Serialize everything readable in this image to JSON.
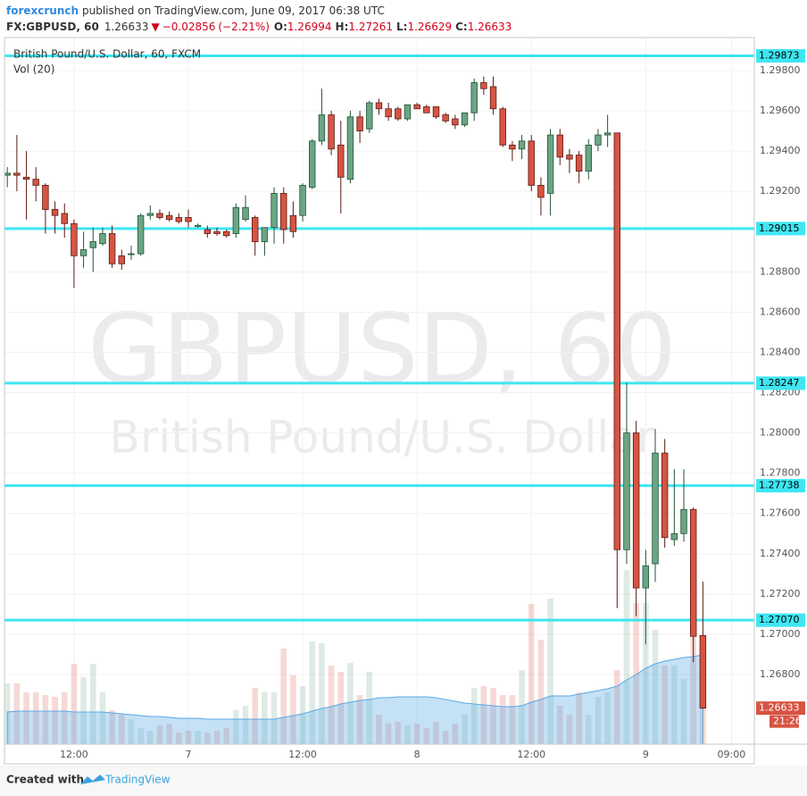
{
  "chart_data": {
    "type": "candlestick",
    "header": {
      "publisher": "forexcrunch",
      "published": "published on TradingView.com, June 09, 2017 06:38 UTC",
      "symbol": "FX:GBPUSD, 60",
      "arrow": "▼",
      "change": "−0.02856",
      "change_pct": "(−2.21%)",
      "ohlc_labels": [
        "O:",
        "H:",
        "L:",
        "C:"
      ]
    },
    "watermark": [
      "GBPUSD, 60",
      "British Pound/U.S. Dollar"
    ],
    "up_color": "#6ba583",
    "down_color": "#d75442",
    "series": [
      {
        "name": "British Pound/U.S. Dollar, 60, FXCM",
        "open": [
          1.2928,
          1.2929,
          1.2927,
          1.2926,
          1.2923,
          1.2911,
          1.2909,
          1.2904,
          1.2888,
          1.2892,
          1.2894,
          1.2899,
          1.2888,
          1.2889,
          1.2889,
          1.2908,
          1.2909,
          1.2908,
          1.2907,
          1.2907,
          1.2903,
          1.2901,
          1.29,
          1.29,
          1.2899,
          1.2906,
          1.2907,
          1.2895,
          1.2902,
          1.2919,
          1.2908,
          1.2908,
          1.2922,
          1.2945,
          1.2958,
          1.2943,
          1.2926,
          1.2957,
          1.2951,
          1.2964,
          1.2961,
          1.2961,
          1.2956,
          1.2963,
          1.2962,
          1.2962,
          1.2958,
          1.2956,
          1.2953,
          1.2959,
          1.2974,
          1.2972,
          1.2961,
          1.2943,
          1.2941,
          1.2945,
          1.2923,
          1.2919,
          1.2948,
          1.2938,
          1.2938,
          1.293,
          1.2943,
          1.2948,
          1.2949,
          1.2742,
          1.28,
          1.2723,
          1.2735,
          1.279,
          1.2747,
          1.275,
          1.2762,
          1.26994
        ],
        "high": [
          1.2932,
          1.2948,
          1.294,
          1.2932,
          1.2924,
          1.2915,
          1.2914,
          1.2906,
          1.29,
          1.2902,
          1.2902,
          1.2903,
          1.2891,
          1.2893,
          1.2909,
          1.2913,
          1.2911,
          1.291,
          1.2909,
          1.2911,
          1.2904,
          1.2903,
          1.2902,
          1.2901,
          1.2914,
          1.2918,
          1.2908,
          1.2902,
          1.2922,
          1.2922,
          1.2915,
          1.2924,
          1.2946,
          1.2971,
          1.296,
          1.2955,
          1.296,
          1.296,
          1.2965,
          1.2966,
          1.2964,
          1.2962,
          1.2963,
          1.2964,
          1.2963,
          1.2962,
          1.2959,
          1.2958,
          1.2959,
          1.2976,
          1.2977,
          1.2977,
          1.2962,
          1.2945,
          1.2948,
          1.2948,
          1.2927,
          1.2951,
          1.2951,
          1.2941,
          1.294,
          1.2946,
          1.2951,
          1.2958,
          1.2949,
          1.2825,
          1.2806,
          1.2742,
          1.2802,
          1.2797,
          1.2782,
          1.2782,
          1.2763,
          1.27261
        ],
        "low": [
          1.2922,
          1.292,
          1.2906,
          1.2915,
          1.2899,
          1.2899,
          1.2897,
          1.2872,
          1.2882,
          1.288,
          1.2893,
          1.2882,
          1.2881,
          1.2886,
          1.2888,
          1.2906,
          1.2906,
          1.2905,
          1.2904,
          1.2902,
          1.2902,
          1.2897,
          1.2898,
          1.2897,
          1.2897,
          1.2905,
          1.2888,
          1.2888,
          1.2894,
          1.2894,
          1.2897,
          1.2905,
          1.2921,
          1.2943,
          1.2938,
          1.2909,
          1.2924,
          1.2944,
          1.2949,
          1.2958,
          1.2955,
          1.2955,
          1.2955,
          1.2961,
          1.2959,
          1.2956,
          1.2954,
          1.2951,
          1.2952,
          1.2955,
          1.2968,
          1.2958,
          1.2942,
          1.2935,
          1.2936,
          1.292,
          1.2908,
          1.2908,
          1.2933,
          1.2929,
          1.2924,
          1.2926,
          1.294,
          1.2942,
          1.2713,
          1.2735,
          1.2709,
          1.2695,
          1.2726,
          1.2743,
          1.2744,
          1.2746,
          1.2686,
          1.26629
        ],
        "close": [
          1.2929,
          1.2928,
          1.2926,
          1.2923,
          1.2911,
          1.2908,
          1.2904,
          1.2888,
          1.2891,
          1.2895,
          1.2899,
          1.2884,
          1.2884,
          1.2889,
          1.2908,
          1.2909,
          1.2907,
          1.2906,
          1.2905,
          1.2905,
          1.2903,
          1.2899,
          1.2899,
          1.2898,
          1.2912,
          1.2912,
          1.2895,
          1.2902,
          1.2919,
          1.2901,
          1.29,
          1.2923,
          1.2945,
          1.2958,
          1.2941,
          1.2927,
          1.2957,
          1.295,
          1.2964,
          1.2961,
          1.2957,
          1.2956,
          1.2963,
          1.2961,
          1.2959,
          1.2957,
          1.2955,
          1.2953,
          1.2959,
          1.2974,
          1.2971,
          1.2961,
          1.2943,
          1.2941,
          1.2945,
          1.2923,
          1.2917,
          1.2948,
          1.2937,
          1.2936,
          1.293,
          1.2943,
          1.2948,
          1.2949,
          1.2742,
          1.28,
          1.2723,
          1.2734,
          1.279,
          1.2748,
          1.275,
          1.2762,
          1.2699,
          1.26633
        ]
      },
      {
        "name": "Vol (20)",
        "axis": "y2",
        "color": "#5aa9e6",
        "values": [
          68,
          68,
          58,
          58,
          55,
          53,
          58,
          90,
          75,
          90,
          58,
          38,
          33,
          28,
          18,
          15,
          21,
          23,
          13,
          15,
          15,
          13,
          15,
          18,
          38,
          43,
          63,
          58,
          58,
          107,
          77,
          65,
          115,
          113,
          88,
          81,
          91,
          55,
          81,
          33,
          23,
          25,
          21,
          23,
          18,
          25,
          15,
          23,
          33,
          63,
          65,
          63,
          55,
          55,
          83,
          157,
          117,
          163,
          43,
          33,
          58,
          33,
          53,
          58,
          83,
          195,
          158,
          158,
          128,
          88,
          88,
          73,
          123,
          121
        ],
        "ma": [
          36,
          37,
          37,
          37,
          37,
          37,
          37,
          36,
          36,
          36,
          36,
          35,
          34,
          33,
          32,
          31,
          31,
          30,
          29,
          29,
          29,
          28,
          28,
          28,
          28,
          28,
          28,
          28,
          28,
          30,
          32,
          34,
          37,
          40,
          42,
          45,
          47,
          49,
          50,
          52,
          52,
          53,
          53,
          53,
          53,
          52,
          50,
          48,
          46,
          45,
          44,
          43,
          42,
          42,
          43,
          47,
          50,
          54,
          54,
          54,
          56,
          58,
          60,
          62,
          65,
          72,
          78,
          85,
          90,
          93,
          95,
          97,
          98,
          100
        ]
      }
    ],
    "hline_color": "#3ee6f2",
    "hlines": [
      {
        "value": 1.29873,
        "label": "1.29873"
      },
      {
        "value": 1.29015,
        "label": "1.29015"
      },
      {
        "value": 1.28247,
        "label": "1.28247"
      },
      {
        "value": 1.27738,
        "label": "1.27738"
      },
      {
        "value": 1.2707,
        "label": "1.27070"
      }
    ],
    "countdown": "21:26",
    "xlim": [
      -0.3,
      78.4
    ],
    "xticks": [
      {
        "value": 7,
        "label": "12:00"
      },
      {
        "value": 19,
        "label": "7"
      },
      {
        "value": 31,
        "label": "12:00"
      },
      {
        "value": 43,
        "label": "8"
      },
      {
        "value": 55,
        "label": "12:00"
      },
      {
        "value": 67,
        "label": "9"
      },
      {
        "value": 76,
        "label": "09:00"
      }
    ],
    "ylim": [
      1.26454,
      1.29964
    ],
    "yticks": [
      {
        "value": 1.298,
        "label": "1.29800"
      },
      {
        "value": 1.296,
        "label": "1.29600"
      },
      {
        "value": 1.294,
        "label": "1.29400"
      },
      {
        "value": 1.292,
        "label": "1.29200"
      },
      {
        "value": 1.288,
        "label": "1.28800"
      },
      {
        "value": 1.286,
        "label": "1.28600"
      },
      {
        "value": 1.284,
        "label": "1.28400"
      },
      {
        "value": 1.282,
        "label": "1.28200"
      },
      {
        "value": 1.28,
        "label": "1.28000"
      },
      {
        "value": 1.278,
        "label": "1.27800"
      },
      {
        "value": 1.276,
        "label": "1.27600"
      },
      {
        "value": 1.274,
        "label": "1.27400"
      },
      {
        "value": 1.272,
        "label": "1.27200"
      },
      {
        "value": 1.27,
        "label": "1.27000"
      },
      {
        "value": 1.268,
        "label": "1.26800"
      }
    ],
    "y2lim": [
      0,
      791
    ],
    "grid": true,
    "footer": [
      "Created with",
      "TradingView"
    ]
  }
}
